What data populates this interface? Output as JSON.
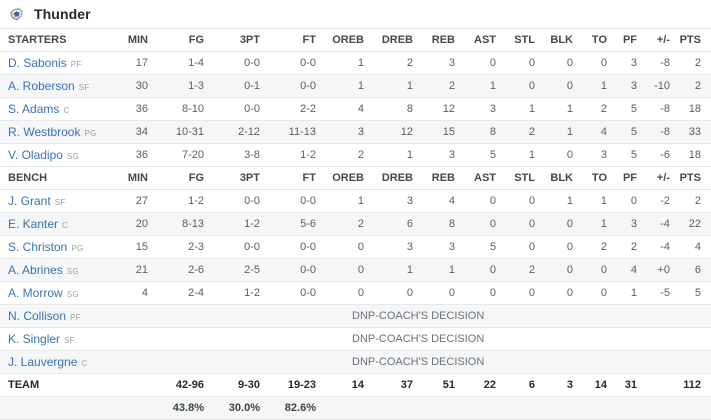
{
  "team": {
    "name": "Thunder",
    "logo": "okc-thunder-logo"
  },
  "labels": {
    "starters": "STARTERS",
    "bench": "BENCH"
  },
  "columns": [
    "MIN",
    "FG",
    "3PT",
    "FT",
    "OREB",
    "DREB",
    "REB",
    "AST",
    "STL",
    "BLK",
    "TO",
    "PF",
    "+/-",
    "PTS"
  ],
  "starters": [
    {
      "name": "D. Sabonis",
      "pos": "PF",
      "stats": [
        "17",
        "1-4",
        "0-0",
        "0-0",
        "1",
        "2",
        "3",
        "0",
        "0",
        "0",
        "0",
        "3",
        "-8",
        "2"
      ]
    },
    {
      "name": "A. Roberson",
      "pos": "SF",
      "stats": [
        "30",
        "1-3",
        "0-1",
        "0-0",
        "1",
        "1",
        "2",
        "1",
        "0",
        "0",
        "1",
        "3",
        "-10",
        "2"
      ]
    },
    {
      "name": "S. Adams",
      "pos": "C",
      "stats": [
        "36",
        "8-10",
        "0-0",
        "2-2",
        "4",
        "8",
        "12",
        "3",
        "1",
        "1",
        "2",
        "5",
        "-8",
        "18"
      ]
    },
    {
      "name": "R. Westbrook",
      "pos": "PG",
      "stats": [
        "34",
        "10-31",
        "2-12",
        "11-13",
        "3",
        "12",
        "15",
        "8",
        "2",
        "1",
        "4",
        "5",
        "-8",
        "33"
      ]
    },
    {
      "name": "V. Oladipo",
      "pos": "SG",
      "stats": [
        "36",
        "7-20",
        "3-8",
        "1-2",
        "2",
        "1",
        "3",
        "5",
        "1",
        "0",
        "3",
        "5",
        "-6",
        "18"
      ]
    }
  ],
  "bench": [
    {
      "name": "J. Grant",
      "pos": "SF",
      "stats": [
        "27",
        "1-2",
        "0-0",
        "0-0",
        "1",
        "3",
        "4",
        "0",
        "0",
        "1",
        "1",
        "0",
        "-2",
        "2"
      ]
    },
    {
      "name": "E. Kanter",
      "pos": "C",
      "stats": [
        "20",
        "8-13",
        "1-2",
        "5-6",
        "2",
        "6",
        "8",
        "0",
        "0",
        "0",
        "1",
        "3",
        "-4",
        "22"
      ]
    },
    {
      "name": "S. Christon",
      "pos": "PG",
      "stats": [
        "15",
        "2-3",
        "0-0",
        "0-0",
        "0",
        "3",
        "3",
        "5",
        "0",
        "0",
        "2",
        "2",
        "-4",
        "4"
      ]
    },
    {
      "name": "A. Abrines",
      "pos": "SG",
      "stats": [
        "21",
        "2-6",
        "2-5",
        "0-0",
        "0",
        "1",
        "1",
        "0",
        "2",
        "0",
        "0",
        "4",
        "+0",
        "6"
      ]
    },
    {
      "name": "A. Morrow",
      "pos": "SG",
      "stats": [
        "4",
        "2-4",
        "1-2",
        "0-0",
        "0",
        "0",
        "0",
        "0",
        "0",
        "0",
        "0",
        "1",
        "-5",
        "5"
      ]
    }
  ],
  "dnp": [
    {
      "name": "N. Collison",
      "pos": "PF",
      "note": "DNP-COACH'S DECISION"
    },
    {
      "name": "K. Singler",
      "pos": "SF",
      "note": "DNP-COACH'S DECISION"
    },
    {
      "name": "J. Lauvergne",
      "pos": "C",
      "note": "DNP-COACH'S DECISION"
    }
  ],
  "totals": {
    "label": "TEAM",
    "stats": [
      "",
      "42-96",
      "9-30",
      "19-23",
      "14",
      "37",
      "51",
      "22",
      "6",
      "3",
      "14",
      "31",
      "",
      "112"
    ]
  },
  "percentages": {
    "fg": "43.8%",
    "tp": "30.0%",
    "ft": "82.6%"
  },
  "colors": {
    "link_blue": "#3b72b0",
    "alt_row": "#f4f6f7",
    "logo_blue": "#3a69a8",
    "logo_orange": "#e0703f"
  }
}
